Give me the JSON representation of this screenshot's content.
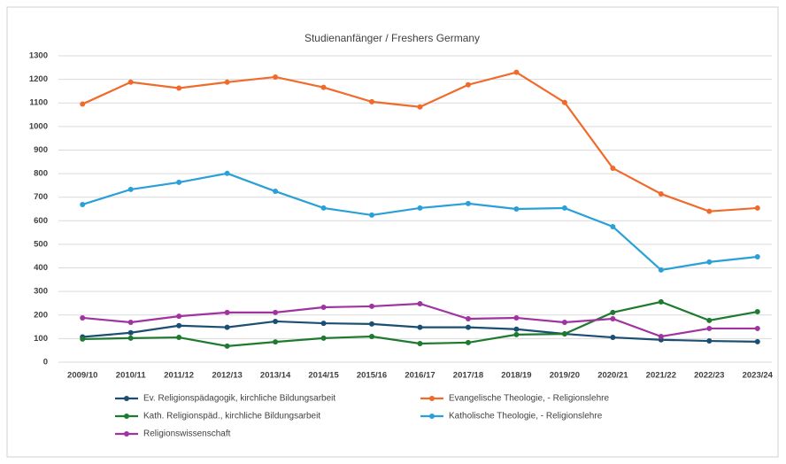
{
  "chart_data": {
    "type": "line",
    "title": "Studienanfänger / Freshers Germany",
    "categories": [
      "2009/10",
      "2010/11",
      "2011/12",
      "2012/13",
      "2013/14",
      "2014/15",
      "2015/16",
      "2016/17",
      "2017/18",
      "2018/19",
      "2019/20",
      "2020/21",
      "2021/22",
      "2022/23",
      "2023/24"
    ],
    "series": [
      {
        "name": "Ev. Religionspädagogik, kirchliche Bildungsarbeit",
        "color": "#1a4e72",
        "values": [
          107,
          125,
          155,
          148,
          173,
          165,
          162,
          148,
          148,
          140,
          120,
          105,
          95,
          90,
          87
        ]
      },
      {
        "name": "Evangelische Theologie, - Religionslehre",
        "color": "#f06a2b",
        "values": [
          1095,
          1188,
          1163,
          1188,
          1210,
          1166,
          1105,
          1083,
          1177,
          1230,
          1102,
          823,
          714,
          640,
          654
        ]
      },
      {
        "name": "Kath. Religionspäd., kirchliche Bildungsarbeit",
        "color": "#1e7a2f",
        "values": [
          98,
          102,
          105,
          68,
          86,
          102,
          109,
          79,
          83,
          117,
          120,
          211,
          256,
          177,
          214
        ]
      },
      {
        "name": "Katholische Theologie, - Religionslehre",
        "color": "#2aa0d8",
        "values": [
          669,
          733,
          763,
          801,
          725,
          654,
          624,
          654,
          673,
          650,
          654,
          575,
          391,
          425,
          447
        ]
      },
      {
        "name": "Religionswissenschaft",
        "color": "#a033a0",
        "values": [
          188,
          169,
          195,
          211,
          211,
          233,
          237,
          248,
          184,
          188,
          169,
          184,
          109,
          143,
          143
        ]
      }
    ],
    "ylim": [
      0,
      1300
    ],
    "yticks": [
      0,
      100,
      200,
      300,
      400,
      500,
      600,
      700,
      800,
      900,
      1000,
      1100,
      1200,
      1300
    ],
    "grid": true
  }
}
